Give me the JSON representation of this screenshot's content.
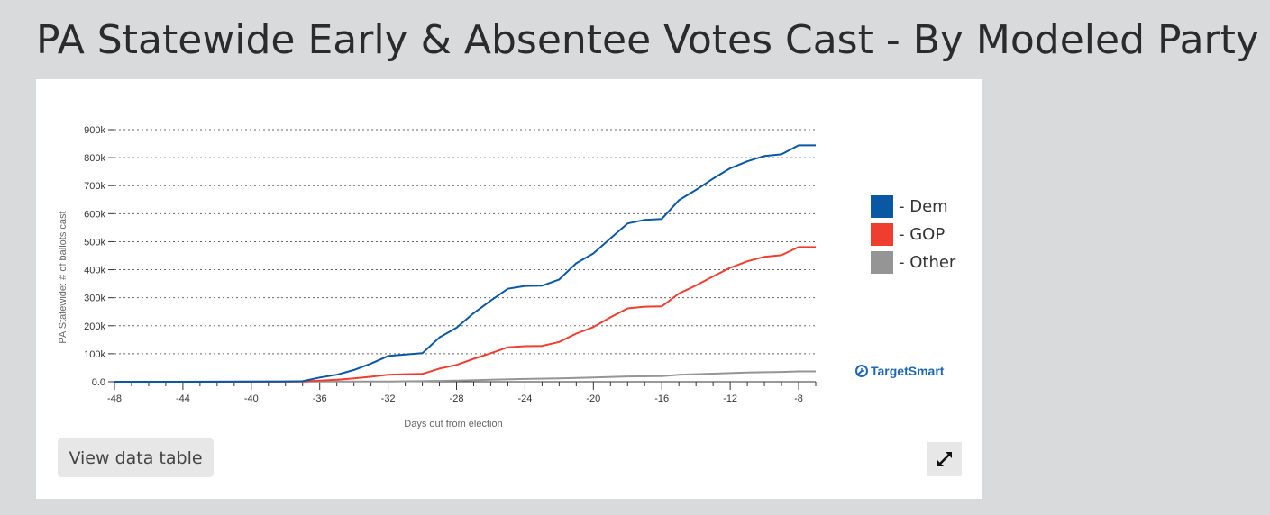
{
  "page": {
    "title": "PA Statewide Early & Absentee Votes Cast - By Modeled Party"
  },
  "controls": {
    "view_table_label": "View data table"
  },
  "brand": {
    "name": "TargetSmart",
    "color": "#1f67b6"
  },
  "legend": [
    {
      "label": "- Dem",
      "color": "#0a57a4"
    },
    {
      "label": "- GOP",
      "color": "#ef3e2f"
    },
    {
      "label": "- Other",
      "color": "#959595"
    }
  ],
  "chart_data": {
    "type": "line",
    "xlabel": "Days out from election",
    "ylabel": "PA Statewide: # of ballots cast",
    "xlim": [
      -48,
      -7
    ],
    "ylim": [
      0,
      900000
    ],
    "x_ticks": [
      -48,
      -44,
      -40,
      -36,
      -32,
      -28,
      -24,
      -20,
      -16,
      -12,
      -8
    ],
    "y_ticks": [
      0,
      100000,
      200000,
      300000,
      400000,
      500000,
      600000,
      700000,
      800000,
      900000
    ],
    "y_tick_labels": [
      "0.0",
      "100k",
      "200k",
      "300k",
      "400k",
      "500k",
      "600k",
      "700k",
      "800k",
      "900k"
    ],
    "grid": true,
    "legend_position": "right",
    "series": [
      {
        "name": "Dem",
        "color": "#0a57a4",
        "points": [
          [
            -48,
            0
          ],
          [
            -44,
            0
          ],
          [
            -40,
            500
          ],
          [
            -38,
            1000
          ],
          [
            -37,
            2000
          ],
          [
            -36,
            15000
          ],
          [
            -35,
            25000
          ],
          [
            -34,
            42000
          ],
          [
            -33,
            65000
          ],
          [
            -32,
            92000
          ],
          [
            -31,
            97000
          ],
          [
            -30,
            102000
          ],
          [
            -29,
            158000
          ],
          [
            -28,
            193000
          ],
          [
            -27,
            245000
          ],
          [
            -26,
            290000
          ],
          [
            -25,
            332000
          ],
          [
            -24,
            342000
          ],
          [
            -23,
            343000
          ],
          [
            -22,
            365000
          ],
          [
            -21,
            423000
          ],
          [
            -20,
            458000
          ],
          [
            -19,
            512000
          ],
          [
            -18,
            565000
          ],
          [
            -17,
            578000
          ],
          [
            -16,
            581000
          ],
          [
            -15,
            648000
          ],
          [
            -14,
            685000
          ],
          [
            -13,
            725000
          ],
          [
            -12,
            762000
          ],
          [
            -11,
            787000
          ],
          [
            -10,
            806000
          ],
          [
            -9,
            812000
          ],
          [
            -8,
            844000
          ],
          [
            -7,
            844000
          ]
        ]
      },
      {
        "name": "GOP",
        "color": "#ef3e2f",
        "points": [
          [
            -48,
            0
          ],
          [
            -44,
            0
          ],
          [
            -40,
            300
          ],
          [
            -38,
            600
          ],
          [
            -37,
            1000
          ],
          [
            -36,
            4000
          ],
          [
            -35,
            7000
          ],
          [
            -34,
            12000
          ],
          [
            -33,
            18000
          ],
          [
            -32,
            25000
          ],
          [
            -31,
            27000
          ],
          [
            -30,
            28000
          ],
          [
            -29,
            47000
          ],
          [
            -28,
            60000
          ],
          [
            -27,
            82000
          ],
          [
            -26,
            102000
          ],
          [
            -25,
            123000
          ],
          [
            -24,
            127000
          ],
          [
            -23,
            128000
          ],
          [
            -22,
            142000
          ],
          [
            -21,
            172000
          ],
          [
            -20,
            195000
          ],
          [
            -19,
            230000
          ],
          [
            -18,
            262000
          ],
          [
            -17,
            268000
          ],
          [
            -16,
            269000
          ],
          [
            -15,
            315000
          ],
          [
            -14,
            344000
          ],
          [
            -13,
            376000
          ],
          [
            -12,
            407000
          ],
          [
            -11,
            430000
          ],
          [
            -10,
            446000
          ],
          [
            -9,
            452000
          ],
          [
            -8,
            481000
          ],
          [
            -7,
            481000
          ]
        ]
      },
      {
        "name": "Other",
        "color": "#959595",
        "points": [
          [
            -48,
            0
          ],
          [
            -44,
            0
          ],
          [
            -40,
            100
          ],
          [
            -36,
            500
          ],
          [
            -32,
            1000
          ],
          [
            -30,
            2000
          ],
          [
            -28,
            4000
          ],
          [
            -26,
            7000
          ],
          [
            -24,
            10000
          ],
          [
            -22,
            12000
          ],
          [
            -20,
            15000
          ],
          [
            -18,
            19000
          ],
          [
            -16,
            20000
          ],
          [
            -15,
            25000
          ],
          [
            -14,
            27000
          ],
          [
            -13,
            29000
          ],
          [
            -12,
            31000
          ],
          [
            -11,
            33000
          ],
          [
            -10,
            34000
          ],
          [
            -9,
            35000
          ],
          [
            -8,
            37000
          ],
          [
            -7,
            37000
          ]
        ]
      }
    ]
  }
}
